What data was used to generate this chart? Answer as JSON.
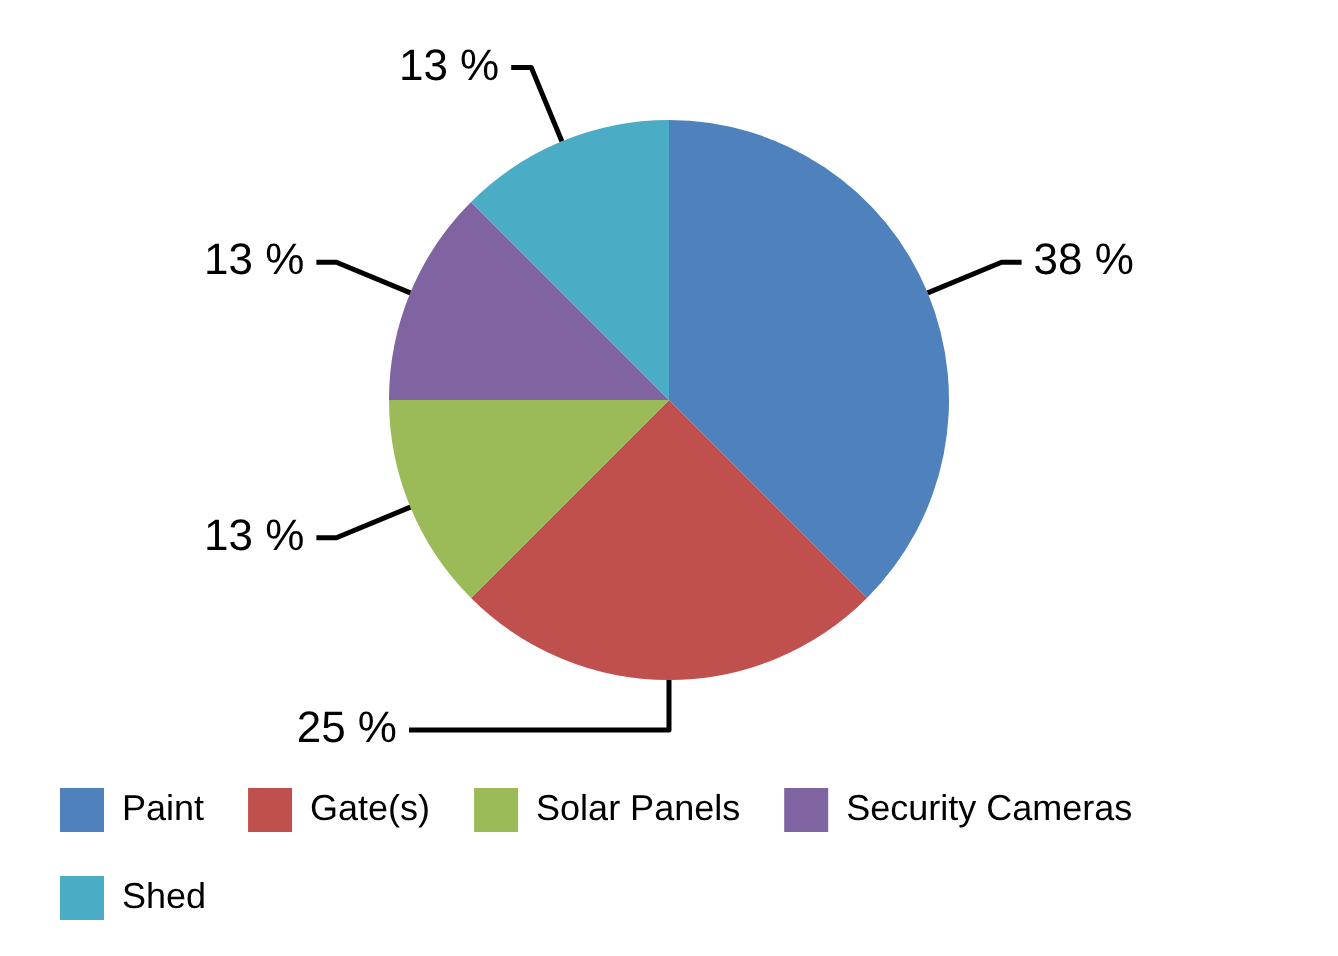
{
  "chart_data": {
    "type": "pie",
    "categories": [
      "Paint",
      "Gate(s)",
      "Solar Panels",
      "Security Cameras",
      "Shed"
    ],
    "values": [
      37.5,
      25,
      12.5,
      12.5,
      12.5
    ],
    "value_labels": [
      "38 %",
      "25 %",
      "13 %",
      "13 %",
      "13 %"
    ],
    "colors": [
      "#4f81bd",
      "#c0504d",
      "#9bbb59",
      "#8064a2",
      "#4bacc6"
    ],
    "legend": "bottom"
  }
}
